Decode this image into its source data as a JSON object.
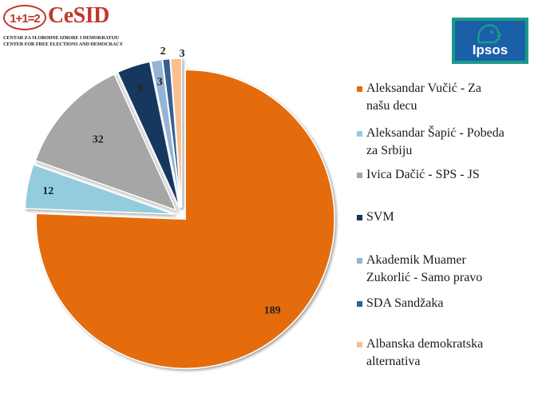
{
  "logos": {
    "cesid": {
      "mark": "1+1=2",
      "name": "CeSID",
      "line1": "CENTAR ZA SLOBODNE IZBORE I DEMOKRATIJU",
      "line2": "CENTER FOR FREE ELECTIONS AND DEMOCRACY"
    },
    "ipsos": {
      "name": "Ipsos",
      "icon": "ipsos-face-icon"
    }
  },
  "chart_data": {
    "type": "pie",
    "title": "",
    "legend_position": "right",
    "slices": [
      {
        "label": "Aleksandar Vučić - Za našu decu",
        "value": 189,
        "color": "#e46c0a"
      },
      {
        "label": "Aleksandar Šapić - Pobeda za Srbiju",
        "value": 12,
        "color": "#93cddd"
      },
      {
        "label": "Ivica Dačić - SPS - JS",
        "value": 32,
        "color": "#a6a6a6"
      },
      {
        "label": "SVM",
        "value": 9,
        "color": "#17375e"
      },
      {
        "label": "Akademik Muamer Zukorlić - Samo pravo",
        "value": 3,
        "color": "#95b3d7"
      },
      {
        "label": "SDA Sandžaka",
        "value": 2,
        "color": "#366092"
      },
      {
        "label": "Albanska demokratska alternativa",
        "value": 3,
        "color": "#fabf8f"
      }
    ],
    "legend_lines": [
      [
        "Aleksandar Vučić - Za",
        "našu decu"
      ],
      [
        "Aleksandar Šapić - Pobeda",
        "za Srbiju"
      ],
      [
        "Ivica Dačić - SPS - JS"
      ],
      [
        "SVM"
      ],
      [
        "Akademik Muamer",
        "Zukorlić - Samo pravo"
      ],
      [
        "SDA Sandžaka"
      ],
      [
        "Albanska demokratska",
        "alternativa"
      ]
    ]
  }
}
